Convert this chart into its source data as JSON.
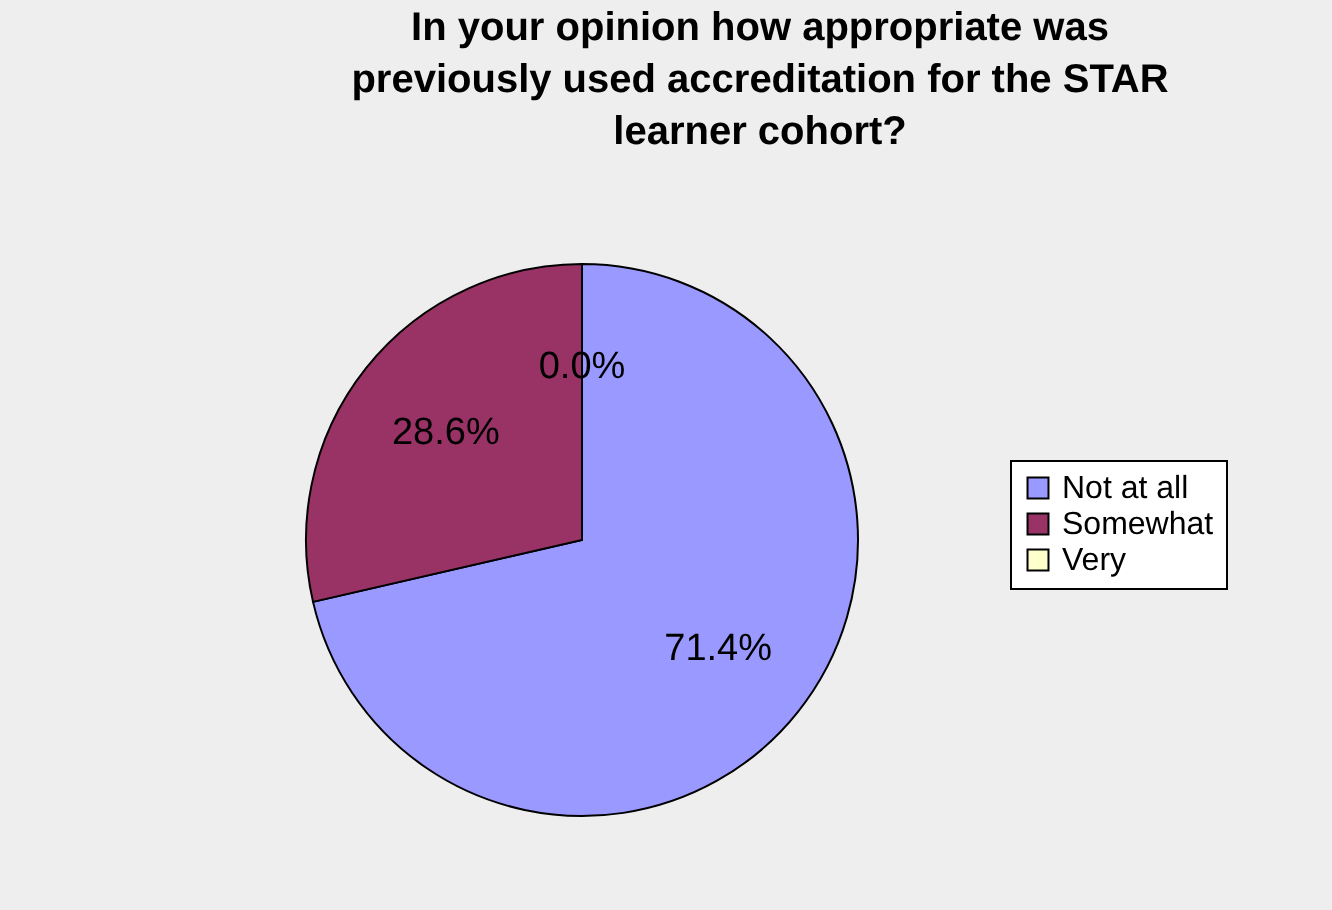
{
  "chart_data": {
    "type": "pie",
    "title": "In your opinion how appropriate was previously used accreditation for the STAR learner cohort?",
    "categories": [
      "Not at all",
      "Somewhat",
      "Very"
    ],
    "values": [
      71.4,
      28.6,
      0
    ],
    "colors": [
      "#9999ff",
      "#993366",
      "#ffffcc"
    ],
    "value_labels": [
      "71.4%",
      "28.6%",
      "0.0%"
    ],
    "legend": "right"
  }
}
